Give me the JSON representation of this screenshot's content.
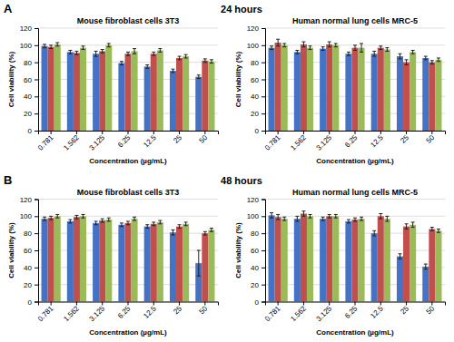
{
  "chart_data": [
    {
      "type": "bar",
      "title": "Mouse fibroblast cells 3T3",
      "xlabel": "Concentration (µg/mL)",
      "ylabel": "Cell viability (%)",
      "annotations": [
        "A",
        "24 hours"
      ],
      "categories": [
        "0.781",
        "1.562",
        "3.125",
        "6.25",
        "12.5",
        "25",
        "50"
      ],
      "series": [
        {
          "color": "#4472C4",
          "values": [
            99,
            92,
            90,
            79,
            75,
            70,
            63
          ],
          "errors": [
            2,
            2,
            3,
            2,
            2,
            2,
            2
          ]
        },
        {
          "color": "#C0504D",
          "values": [
            98,
            91,
            93,
            90,
            90,
            85,
            82
          ],
          "errors": [
            2,
            2,
            2,
            2,
            2,
            2,
            2
          ]
        },
        {
          "color": "#9BBB59",
          "values": [
            101,
            97,
            100,
            93,
            94,
            87,
            81
          ],
          "errors": [
            2,
            2,
            2,
            3,
            2,
            2,
            2
          ]
        }
      ],
      "ylim": [
        0,
        120
      ],
      "yticks": [
        0,
        20,
        40,
        60,
        80,
        100,
        120
      ],
      "grid": true
    },
    {
      "type": "bar",
      "title": "Human normal lung cells MRC-5",
      "xlabel": "Concentration (µg/mL)",
      "ylabel": "Cell viability (%)",
      "categories": [
        "0.781",
        "1.562",
        "3.125",
        "6.25",
        "12.5",
        "25",
        "50"
      ],
      "series": [
        {
          "color": "#4472C4",
          "values": [
            97,
            92,
            96,
            90,
            90,
            87,
            85
          ],
          "errors": [
            2,
            2,
            2,
            2,
            3,
            3,
            2
          ]
        },
        {
          "color": "#C0504D",
          "values": [
            103,
            101,
            101,
            97,
            97,
            80,
            80
          ],
          "errors": [
            4,
            3,
            3,
            3,
            2,
            3,
            2
          ]
        },
        {
          "color": "#9BBB59",
          "values": [
            100,
            97,
            100,
            97,
            95,
            92,
            83
          ],
          "errors": [
            2,
            2,
            2,
            5,
            2,
            2,
            2
          ]
        }
      ],
      "ylim": [
        0,
        120
      ],
      "yticks": [
        0,
        20,
        40,
        60,
        80,
        100,
        120
      ],
      "grid": true
    },
    {
      "type": "bar",
      "title": "Mouse fibroblast cells 3T3",
      "xlabel": "Concentration (µg/mL)",
      "ylabel": "Cell viability (%)",
      "annotations": [
        "B",
        "48 hours"
      ],
      "categories": [
        "0.781",
        "1.562",
        "3.125",
        "6.25",
        "12.5",
        "25",
        "50"
      ],
      "series": [
        {
          "color": "#4472C4",
          "values": [
            97,
            94,
            92,
            90,
            88,
            81,
            45
          ],
          "errors": [
            2,
            2,
            2,
            2,
            2,
            3,
            15
          ]
        },
        {
          "color": "#C0504D",
          "values": [
            98,
            99,
            95,
            92,
            91,
            88,
            80
          ],
          "errors": [
            2,
            2,
            2,
            2,
            2,
            2,
            2
          ]
        },
        {
          "color": "#9BBB59",
          "values": [
            100,
            100,
            96,
            97,
            93,
            91,
            84
          ],
          "errors": [
            2,
            2,
            2,
            2,
            2,
            2,
            2
          ]
        }
      ],
      "ylim": [
        0,
        120
      ],
      "yticks": [
        0,
        20,
        40,
        60,
        80,
        100,
        120
      ],
      "grid": true
    },
    {
      "type": "bar",
      "title": "Human normal lung cells MRC-5",
      "xlabel": "Concentration (µg/mL)",
      "ylabel": "Cell viability (%)",
      "categories": [
        "0.781",
        "1.562",
        "3.125",
        "6.25",
        "12.5",
        "25",
        "50"
      ],
      "series": [
        {
          "color": "#4472C4",
          "values": [
            101,
            97,
            97,
            94,
            80,
            53,
            41
          ],
          "errors": [
            3,
            3,
            2,
            2,
            3,
            3,
            3
          ]
        },
        {
          "color": "#C0504D",
          "values": [
            99,
            103,
            100,
            96,
            100,
            88,
            85
          ],
          "errors": [
            3,
            3,
            2,
            2,
            3,
            3,
            2
          ]
        },
        {
          "color": "#9BBB59",
          "values": [
            97,
            100,
            100,
            97,
            97,
            90,
            83
          ],
          "errors": [
            2,
            2,
            2,
            2,
            3,
            3,
            2
          ]
        }
      ],
      "ylim": [
        0,
        120
      ],
      "yticks": [
        0,
        20,
        40,
        60,
        80,
        100,
        120
      ],
      "grid": true
    }
  ]
}
